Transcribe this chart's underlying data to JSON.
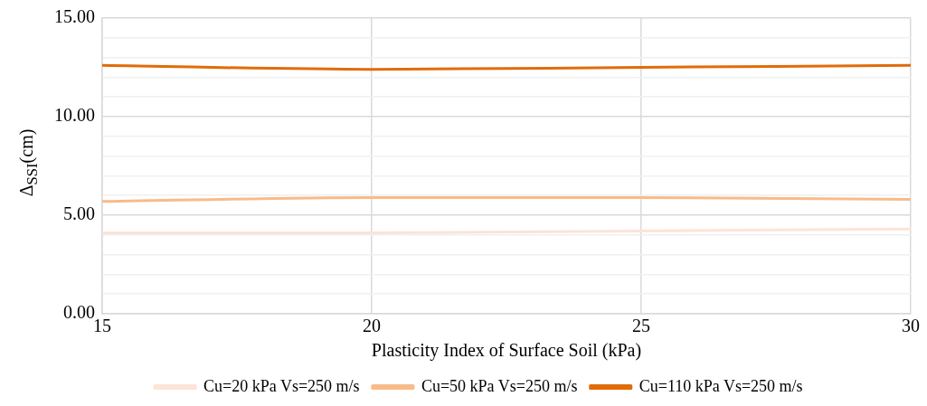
{
  "chart_data": {
    "type": "line",
    "xlabel": "Plasticity Index of Surface Soil (kPa)",
    "ylabel": "Δ$_{SSI}$(cm)",
    "x": [
      15,
      20,
      25,
      30
    ],
    "series": [
      {
        "name": "Cu=20 kPa Vs=250 m/s",
        "color": "#fce4d6",
        "values": [
          4.1,
          4.1,
          4.2,
          4.3
        ]
      },
      {
        "name": "Cu=50 kPa Vs=250 m/s",
        "color": "#f8bb8a",
        "values": [
          5.7,
          5.9,
          5.9,
          5.8
        ]
      },
      {
        "name": "Cu=110 kPa Vs=250 m/s",
        "color": "#e26b0a",
        "values": [
          12.6,
          12.4,
          12.5,
          12.6
        ]
      }
    ],
    "xlim": [
      15,
      30
    ],
    "xticks": [
      15,
      20,
      25,
      30
    ],
    "ylim": [
      0,
      15
    ],
    "yticks": [
      {
        "value": 0,
        "label": "0.00"
      },
      {
        "value": 1,
        "label": null
      },
      {
        "value": 2,
        "label": null
      },
      {
        "value": 3,
        "label": null
      },
      {
        "value": 4,
        "label": null
      },
      {
        "value": 5,
        "label": "5.00"
      },
      {
        "value": 6,
        "label": null
      },
      {
        "value": 7,
        "label": null
      },
      {
        "value": 8,
        "label": null
      },
      {
        "value": 9,
        "label": null
      },
      {
        "value": 10,
        "label": "10.00"
      },
      {
        "value": 11,
        "label": null
      },
      {
        "value": 12,
        "label": null
      },
      {
        "value": 13,
        "label": null
      },
      {
        "value": 14,
        "label": null
      },
      {
        "value": 15,
        "label": "15.00"
      }
    ],
    "grid": true,
    "legend": "bottom",
    "marker": "none",
    "line_style": "solid"
  }
}
